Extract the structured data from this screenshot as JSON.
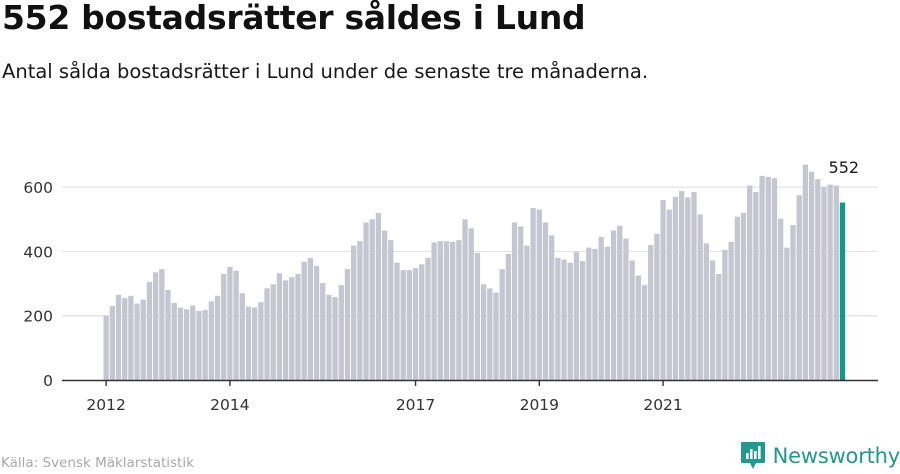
{
  "header": {
    "title": "552 bostadsrätter såldes i Lund",
    "subtitle": "Antal sålda bostadsrätter i Lund under de senaste tre månaderna."
  },
  "footer": {
    "source": "Källa: Svensk Mäklarstatistik",
    "brand": "Newsworthy",
    "brand_icon": "newsworthy-logo-icon"
  },
  "colors": {
    "bar": "#c6c6d2",
    "highlight": "#12998e",
    "grid": "#e3e3e3",
    "axis": "#333333",
    "brand": "#1f9a8e"
  },
  "chart_data": {
    "type": "bar",
    "x_tick_labels": [
      "2012",
      "2014",
      "2017",
      "2019",
      "2021"
    ],
    "x_tick_positions": [
      0,
      20,
      50,
      70,
      90
    ],
    "y_ticks": [
      0,
      200,
      400,
      600
    ],
    "ylim": [
      0,
      700
    ],
    "grid": true,
    "highlight_label": "552",
    "values": [
      200,
      230,
      265,
      255,
      262,
      238,
      250,
      305,
      335,
      345,
      280,
      240,
      225,
      220,
      232,
      215,
      218,
      245,
      262,
      330,
      352,
      340,
      270,
      228,
      226,
      242,
      285,
      298,
      332,
      310,
      320,
      330,
      368,
      380,
      355,
      302,
      265,
      258,
      295,
      345,
      418,
      432,
      490,
      500,
      520,
      465,
      435,
      365,
      342,
      342,
      348,
      360,
      380,
      428,
      432,
      432,
      430,
      435,
      500,
      472,
      395,
      298,
      285,
      272,
      345,
      392,
      490,
      478,
      418,
      535,
      530,
      490,
      450,
      380,
      375,
      365,
      398,
      370,
      412,
      408,
      445,
      415,
      465,
      480,
      440,
      372,
      325,
      295,
      420,
      455,
      560,
      530,
      570,
      588,
      568,
      585,
      515,
      425,
      372,
      330,
      405,
      430,
      508,
      520,
      605,
      585,
      635,
      632,
      628,
      502,
      412,
      482,
      575,
      670,
      648,
      625,
      600,
      608,
      605,
      552
    ]
  }
}
